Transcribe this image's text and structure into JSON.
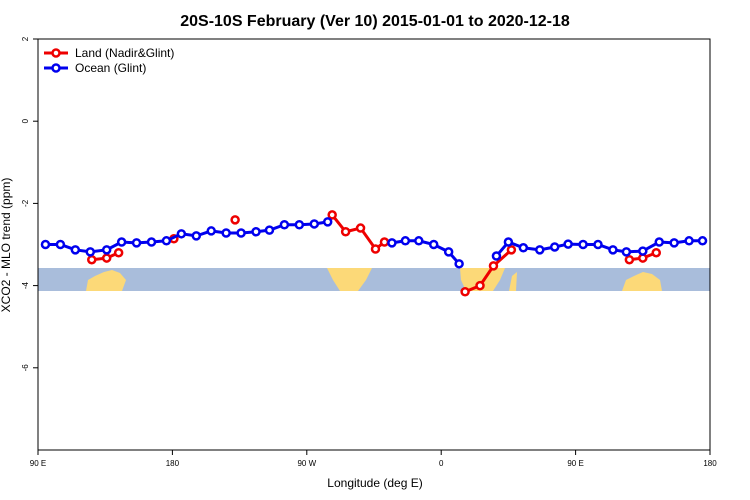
{
  "chart_data": {
    "type": "line",
    "title": "20S-10S February (Ver 10)   2015-01-01 to 2020-12-18",
    "x_label": "Longitude (deg E)",
    "y_label": "XCO2 - MLO trend (ppm)",
    "xlim": [
      90,
      540
    ],
    "ylim": [
      -8,
      2
    ],
    "xticks": [
      {
        "value": 90,
        "label": "90 E"
      },
      180,
      {
        "value": 270,
        "label": "90 W"
      },
      {
        "value": 360,
        "label": "0"
      },
      {
        "value": 450,
        "label": "90 E"
      },
      {
        "value": 540,
        "label": "180"
      }
    ],
    "yticks": [
      2,
      0,
      -2,
      -4,
      -6
    ],
    "legend": "top-left",
    "series": [
      {
        "name": "Land (Nadir&Glint)",
        "color": "#ee0000",
        "x": [
          126,
          136,
          144,
          181,
          222,
          287,
          296,
          306,
          316,
          322,
          376,
          386,
          395,
          407,
          486,
          495,
          504
        ],
        "values": [
          -3.37,
          -3.33,
          -3.2,
          -2.86,
          -2.4,
          -2.28,
          -2.69,
          -2.6,
          -3.11,
          -2.94,
          -4.15,
          -4.0,
          -3.52,
          -3.13,
          -3.37,
          -3.33,
          -3.2
        ],
        "breaks_after": [
          2,
          3,
          4,
          9,
          13
        ]
      },
      {
        "name": "Ocean (Glint)",
        "color": "#0000ee",
        "x": [
          95,
          105,
          115,
          125,
          136,
          146,
          156,
          166,
          176,
          186,
          196,
          206,
          216,
          226,
          236,
          245,
          255,
          265,
          275,
          284,
          null,
          327,
          336,
          345,
          355,
          365,
          372,
          null,
          397,
          405,
          415,
          426,
          436,
          445,
          455,
          465,
          475,
          484,
          495,
          506,
          516,
          526,
          535
        ],
        "values": [
          -3.0,
          -3.0,
          -3.13,
          -3.18,
          -3.13,
          -2.94,
          -2.96,
          -2.94,
          -2.91,
          -2.74,
          -2.79,
          -2.67,
          -2.72,
          -2.72,
          -2.69,
          -2.65,
          -2.52,
          -2.52,
          -2.5,
          -2.45,
          null,
          -2.96,
          -2.91,
          -2.91,
          -3.0,
          -3.18,
          -3.47,
          null,
          -3.28,
          -2.94,
          -3.08,
          -3.13,
          -3.06,
          -2.99,
          -3.0,
          -3.0,
          -3.13,
          -3.18,
          -3.16,
          -2.94,
          -2.96,
          -2.91,
          -2.91
        ]
      }
    ]
  }
}
